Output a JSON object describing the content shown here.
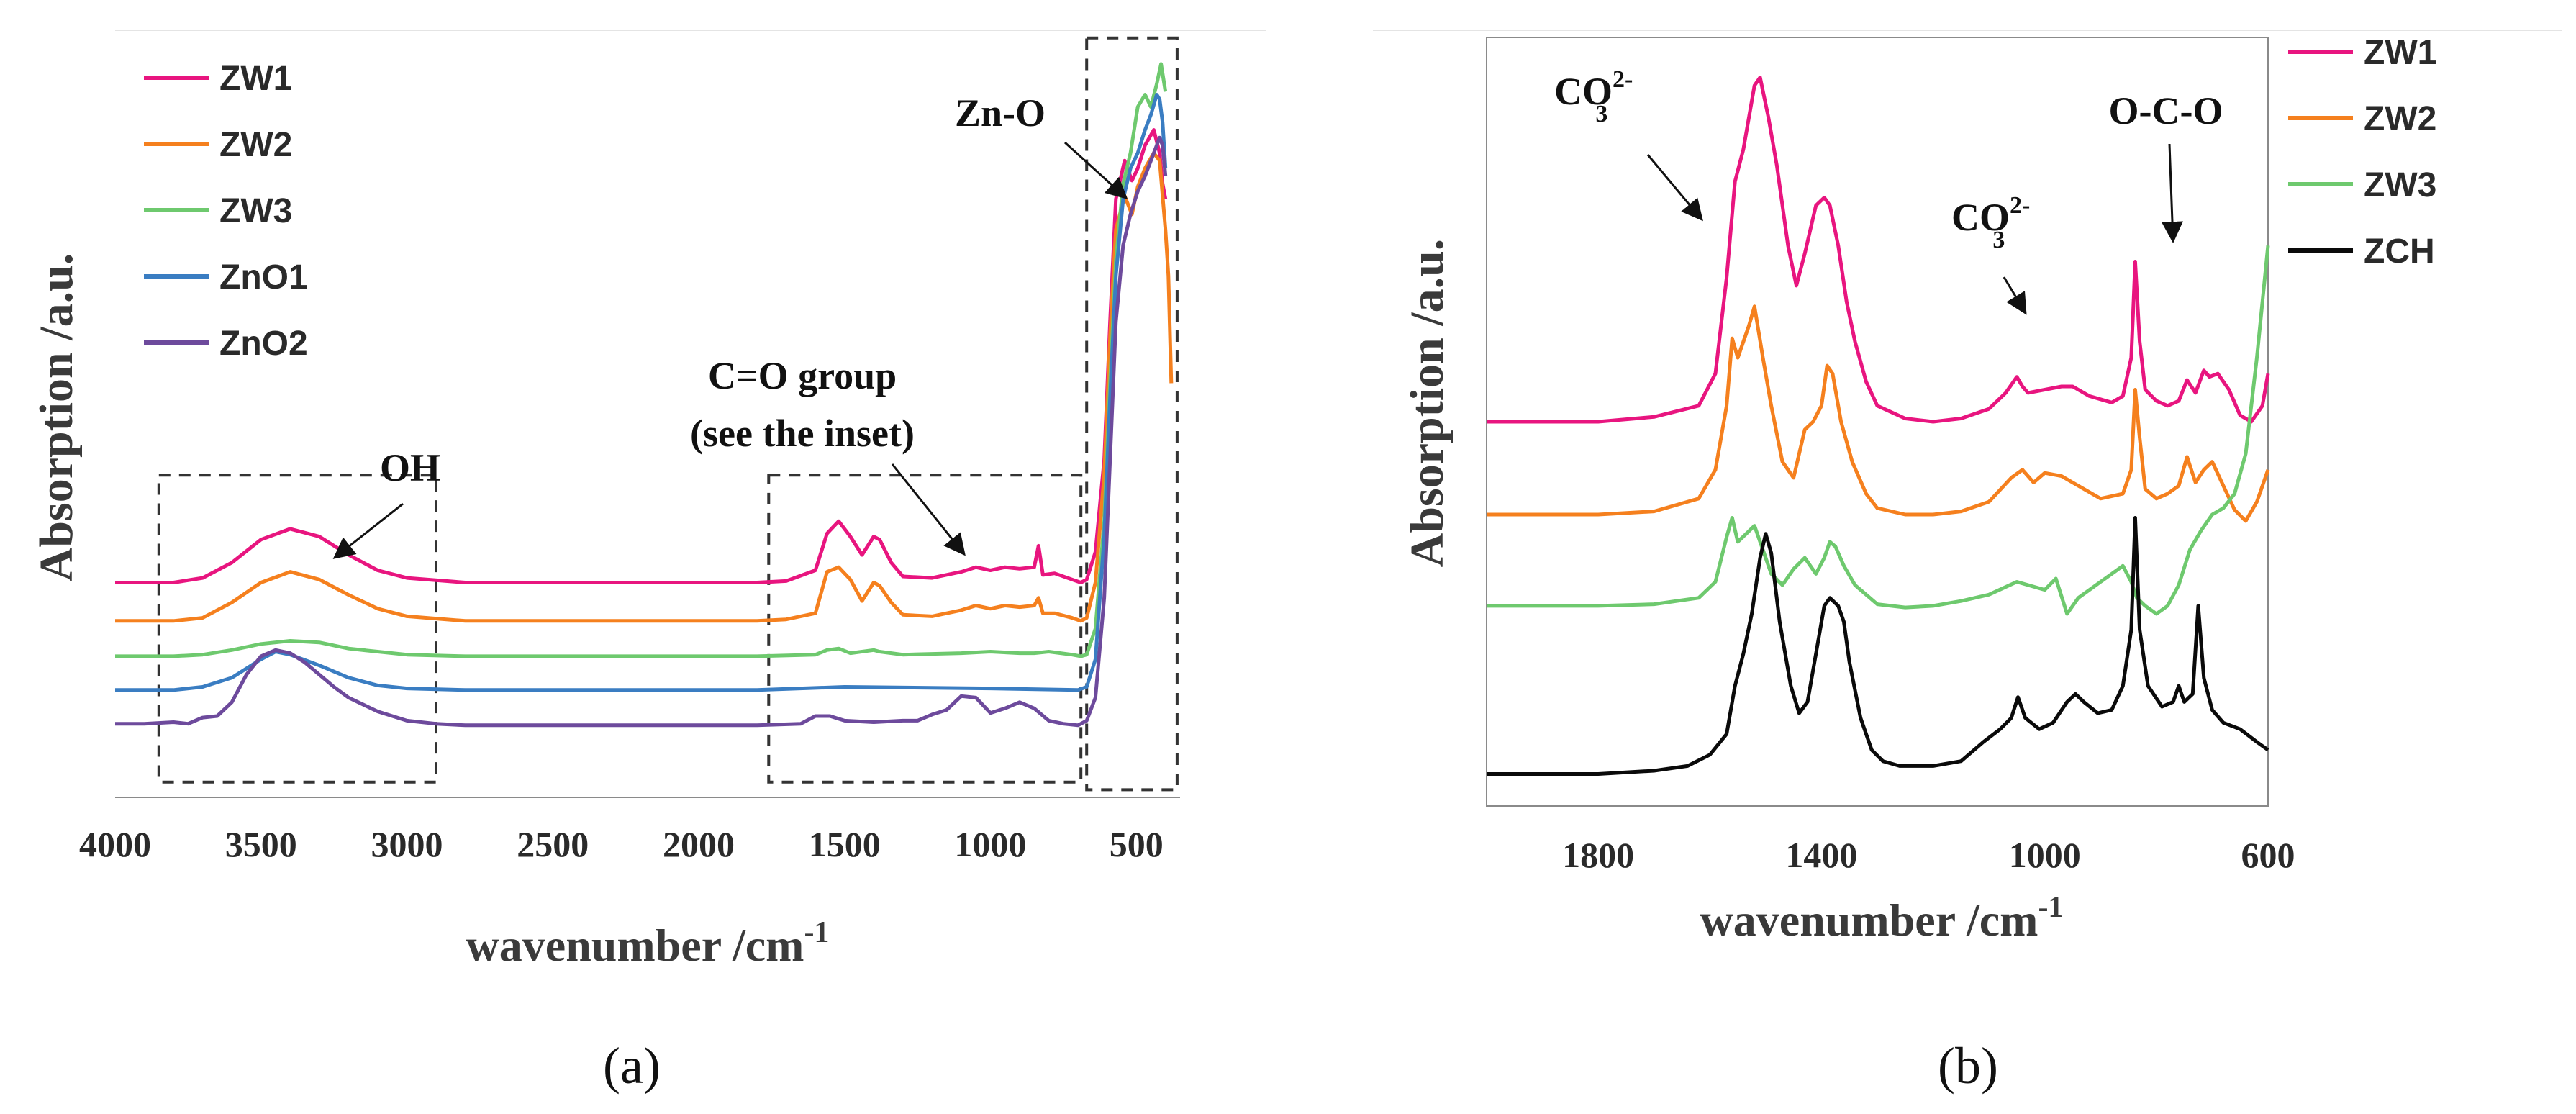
{
  "chart_data": [
    {
      "type": "line",
      "panel_label": "a",
      "caption": "(a)",
      "xlabel": "wavenumber /cm",
      "xlabel_sup": "-1",
      "ylabel": "Absorption /a.u.",
      "xlim": [
        4000,
        350
      ],
      "x_reversed": true,
      "ylim": [
        -0.2,
        4.8
      ],
      "xticks": [
        4000,
        3500,
        3000,
        2500,
        2000,
        1500,
        1000,
        500
      ],
      "legend": {
        "position": "top-left",
        "entries": [
          "ZW1",
          "ZW2",
          "ZW3",
          "ZnO1",
          "ZnO2"
        ]
      },
      "series": [
        {
          "name": "ZW1",
          "color": "#e8157f",
          "x": [
            4000,
            3800,
            3700,
            3600,
            3500,
            3400,
            3300,
            3200,
            3100,
            3000,
            2800,
            2500,
            2000,
            1800,
            1700,
            1600,
            1560,
            1520,
            1480,
            1440,
            1400,
            1380,
            1340,
            1300,
            1200,
            1100,
            1050,
            1000,
            950,
            900,
            850,
            835,
            820,
            780,
            720,
            690,
            670,
            640,
            610,
            590,
            570,
            540,
            515,
            495,
            470,
            440,
            420,
            410,
            400
          ],
          "y": [
            1.2,
            1.2,
            1.23,
            1.33,
            1.48,
            1.55,
            1.5,
            1.38,
            1.28,
            1.23,
            1.2,
            1.2,
            1.2,
            1.2,
            1.21,
            1.28,
            1.52,
            1.6,
            1.5,
            1.38,
            1.5,
            1.48,
            1.33,
            1.24,
            1.23,
            1.27,
            1.3,
            1.28,
            1.3,
            1.29,
            1.3,
            1.44,
            1.25,
            1.26,
            1.22,
            1.2,
            1.22,
            1.4,
            2.0,
            2.9,
            3.7,
            3.95,
            3.82,
            3.9,
            4.05,
            4.15,
            4.0,
            3.8,
            3.7
          ]
        },
        {
          "name": "ZW2",
          "color": "#f5801e",
          "x": [
            4000,
            3800,
            3700,
            3600,
            3500,
            3400,
            3300,
            3200,
            3100,
            3000,
            2800,
            2500,
            2000,
            1800,
            1700,
            1600,
            1560,
            1520,
            1480,
            1440,
            1400,
            1380,
            1340,
            1300,
            1200,
            1100,
            1050,
            1000,
            950,
            900,
            850,
            835,
            820,
            780,
            720,
            690,
            670,
            640,
            610,
            590,
            570,
            540,
            515,
            495,
            470,
            440,
            420,
            400,
            390,
            380
          ],
          "y": [
            0.95,
            0.95,
            0.97,
            1.07,
            1.2,
            1.27,
            1.22,
            1.12,
            1.03,
            0.98,
            0.95,
            0.95,
            0.95,
            0.95,
            0.96,
            1.0,
            1.27,
            1.3,
            1.22,
            1.08,
            1.2,
            1.18,
            1.07,
            0.99,
            0.98,
            1.02,
            1.05,
            1.03,
            1.05,
            1.04,
            1.05,
            1.1,
            1.0,
            1.0,
            0.97,
            0.95,
            0.97,
            1.2,
            1.9,
            2.8,
            3.5,
            3.72,
            3.6,
            3.78,
            3.9,
            4.0,
            3.95,
            3.5,
            3.2,
            2.5
          ]
        },
        {
          "name": "ZW3",
          "color": "#6ec96e",
          "x": [
            4000,
            3800,
            3700,
            3600,
            3500,
            3400,
            3300,
            3200,
            3100,
            3000,
            2800,
            2500,
            2000,
            1800,
            1600,
            1560,
            1520,
            1480,
            1400,
            1380,
            1300,
            1100,
            1000,
            900,
            850,
            800,
            720,
            690,
            670,
            640,
            610,
            590,
            570,
            545,
            520,
            495,
            470,
            450,
            430,
            415,
            400
          ],
          "y": [
            0.72,
            0.72,
            0.73,
            0.76,
            0.8,
            0.82,
            0.81,
            0.77,
            0.75,
            0.73,
            0.72,
            0.72,
            0.72,
            0.72,
            0.73,
            0.76,
            0.77,
            0.74,
            0.76,
            0.75,
            0.73,
            0.74,
            0.75,
            0.74,
            0.74,
            0.75,
            0.73,
            0.72,
            0.73,
            0.9,
            1.6,
            2.5,
            3.3,
            3.8,
            4.0,
            4.3,
            4.38,
            4.3,
            4.45,
            4.58,
            4.4
          ]
        },
        {
          "name": "ZnO1",
          "color": "#3a7dc2",
          "x": [
            4000,
            3800,
            3700,
            3600,
            3500,
            3450,
            3400,
            3300,
            3200,
            3100,
            3000,
            2800,
            2500,
            2000,
            1800,
            1500,
            1000,
            700,
            670,
            640,
            610,
            590,
            570,
            545,
            520,
            495,
            470,
            450,
            430,
            420,
            410,
            400
          ],
          "y": [
            0.5,
            0.5,
            0.52,
            0.58,
            0.7,
            0.75,
            0.73,
            0.66,
            0.58,
            0.53,
            0.51,
            0.5,
            0.5,
            0.5,
            0.5,
            0.52,
            0.51,
            0.5,
            0.52,
            0.7,
            1.5,
            2.4,
            3.2,
            3.7,
            3.9,
            4.0,
            4.15,
            4.25,
            4.38,
            4.35,
            4.2,
            3.9
          ]
        },
        {
          "name": "ZnO2",
          "color": "#6d4a9c",
          "x": [
            4000,
            3900,
            3800,
            3750,
            3700,
            3650,
            3600,
            3550,
            3500,
            3450,
            3400,
            3350,
            3300,
            3250,
            3200,
            3100,
            3000,
            2900,
            2800,
            2500,
            2000,
            1800,
            1650,
            1600,
            1550,
            1500,
            1400,
            1300,
            1250,
            1200,
            1150,
            1100,
            1050,
            1000,
            950,
            900,
            850,
            800,
            750,
            700,
            670,
            640,
            610,
            590,
            570,
            545,
            520,
            495,
            470,
            450,
            430,
            420,
            410,
            400
          ],
          "y": [
            0.28,
            0.28,
            0.29,
            0.28,
            0.32,
            0.33,
            0.42,
            0.6,
            0.72,
            0.76,
            0.74,
            0.68,
            0.6,
            0.52,
            0.45,
            0.36,
            0.3,
            0.28,
            0.27,
            0.27,
            0.27,
            0.27,
            0.28,
            0.33,
            0.33,
            0.3,
            0.29,
            0.3,
            0.3,
            0.34,
            0.37,
            0.46,
            0.45,
            0.35,
            0.38,
            0.42,
            0.38,
            0.3,
            0.28,
            0.27,
            0.3,
            0.45,
            1.1,
            2.0,
            2.9,
            3.4,
            3.6,
            3.75,
            3.85,
            3.95,
            4.05,
            4.1,
            4.05,
            3.85
          ]
        }
      ],
      "annotations": [
        {
          "text": "OH",
          "box": {
            "x": [
              3850,
              2900
            ],
            "y": [
              -0.1,
              1.9
            ]
          }
        },
        {
          "text": "C=O group",
          "text2": "(see the inset)",
          "box": {
            "x": [
              1760,
              690
            ],
            "y": [
              -0.1,
              1.9
            ]
          }
        },
        {
          "text": "Zn-O",
          "box": {
            "x": [
              670,
              360
            ],
            "y": [
              -0.15,
              4.75
            ]
          }
        }
      ]
    },
    {
      "type": "line",
      "panel_label": "b",
      "caption": "(b)",
      "xlabel": "wavenumber /cm",
      "xlabel_sup": "-1",
      "ylabel": "Absorption /a.u.",
      "xlim": [
        2000,
        600
      ],
      "x_reversed": true,
      "ylim": [
        -0.2,
        4.6
      ],
      "xticks": [
        1800,
        1400,
        1000,
        600
      ],
      "legend": {
        "position": "top-right, outside",
        "entries": [
          "ZW1",
          "ZW2",
          "ZW3",
          "ZCH"
        ]
      },
      "series": [
        {
          "name": "ZW1",
          "color": "#e8157f",
          "x": [
            2000,
            1800,
            1700,
            1620,
            1590,
            1570,
            1555,
            1540,
            1520,
            1510,
            1495,
            1480,
            1460,
            1445,
            1430,
            1410,
            1395,
            1385,
            1370,
            1355,
            1340,
            1320,
            1300,
            1250,
            1200,
            1150,
            1100,
            1070,
            1050,
            1040,
            1030,
            1000,
            970,
            950,
            920,
            880,
            860,
            845,
            838,
            830,
            820,
            800,
            780,
            760,
            745,
            730,
            715,
            705,
            690,
            670,
            650,
            630,
            610,
            600
          ],
          "y": [
            2.2,
            2.2,
            2.23,
            2.3,
            2.5,
            3.1,
            3.7,
            3.9,
            4.3,
            4.35,
            4.1,
            3.8,
            3.3,
            3.05,
            3.25,
            3.55,
            3.6,
            3.55,
            3.3,
            2.95,
            2.7,
            2.45,
            2.3,
            2.22,
            2.2,
            2.22,
            2.28,
            2.38,
            2.48,
            2.42,
            2.38,
            2.4,
            2.42,
            2.42,
            2.36,
            2.32,
            2.36,
            2.6,
            3.2,
            2.7,
            2.4,
            2.33,
            2.3,
            2.33,
            2.46,
            2.38,
            2.52,
            2.48,
            2.5,
            2.4,
            2.24,
            2.2,
            2.3,
            2.5
          ]
        },
        {
          "name": "ZW2",
          "color": "#f5801e",
          "x": [
            2000,
            1800,
            1700,
            1620,
            1590,
            1570,
            1560,
            1550,
            1530,
            1520,
            1505,
            1490,
            1470,
            1450,
            1430,
            1415,
            1400,
            1390,
            1380,
            1365,
            1345,
            1320,
            1300,
            1250,
            1200,
            1150,
            1100,
            1060,
            1040,
            1020,
            1000,
            970,
            940,
            900,
            860,
            845,
            838,
            830,
            820,
            800,
            780,
            760,
            745,
            730,
            715,
            700,
            680,
            660,
            640,
            620,
            600
          ],
          "y": [
            1.62,
            1.62,
            1.64,
            1.72,
            1.9,
            2.3,
            2.72,
            2.6,
            2.8,
            2.92,
            2.6,
            2.3,
            1.95,
            1.85,
            2.15,
            2.2,
            2.3,
            2.55,
            2.5,
            2.2,
            1.95,
            1.75,
            1.66,
            1.62,
            1.62,
            1.64,
            1.7,
            1.85,
            1.9,
            1.82,
            1.88,
            1.86,
            1.8,
            1.72,
            1.75,
            1.9,
            2.4,
            2.1,
            1.78,
            1.72,
            1.75,
            1.8,
            1.98,
            1.82,
            1.9,
            1.95,
            1.8,
            1.65,
            1.58,
            1.7,
            1.9
          ]
        },
        {
          "name": "ZW3",
          "color": "#6ec96e",
          "x": [
            2000,
            1800,
            1700,
            1620,
            1590,
            1570,
            1560,
            1550,
            1535,
            1520,
            1505,
            1490,
            1470,
            1450,
            1430,
            1410,
            1395,
            1385,
            1375,
            1360,
            1340,
            1320,
            1300,
            1250,
            1200,
            1150,
            1100,
            1050,
            1000,
            980,
            960,
            940,
            900,
            860,
            845,
            835,
            820,
            800,
            780,
            760,
            740,
            720,
            700,
            680,
            660,
            640,
            620,
            600
          ],
          "y": [
            1.05,
            1.05,
            1.06,
            1.1,
            1.2,
            1.48,
            1.6,
            1.45,
            1.5,
            1.55,
            1.4,
            1.25,
            1.18,
            1.28,
            1.35,
            1.25,
            1.35,
            1.45,
            1.42,
            1.3,
            1.18,
            1.12,
            1.06,
            1.04,
            1.05,
            1.08,
            1.12,
            1.2,
            1.15,
            1.22,
            1.0,
            1.1,
            1.2,
            1.3,
            1.2,
            1.1,
            1.05,
            1.0,
            1.05,
            1.18,
            1.4,
            1.52,
            1.62,
            1.66,
            1.75,
            2.0,
            2.6,
            3.3
          ]
        },
        {
          "name": "ZCH",
          "color": "#0a0a0a",
          "x": [
            2000,
            1800,
            1700,
            1640,
            1600,
            1570,
            1555,
            1540,
            1525,
            1510,
            1500,
            1490,
            1475,
            1455,
            1440,
            1425,
            1410,
            1395,
            1385,
            1370,
            1360,
            1350,
            1330,
            1310,
            1290,
            1260,
            1200,
            1150,
            1110,
            1080,
            1060,
            1048,
            1035,
            1010,
            985,
            960,
            945,
            930,
            905,
            880,
            860,
            845,
            838,
            830,
            815,
            790,
            770,
            760,
            750,
            735,
            725,
            715,
            700,
            680,
            650,
            620,
            600
          ],
          "y": [
            0.0,
            0.0,
            0.02,
            0.05,
            0.12,
            0.25,
            0.55,
            0.75,
            1.0,
            1.35,
            1.5,
            1.38,
            0.95,
            0.55,
            0.38,
            0.45,
            0.75,
            1.05,
            1.1,
            1.05,
            0.95,
            0.7,
            0.35,
            0.15,
            0.08,
            0.05,
            0.05,
            0.08,
            0.2,
            0.28,
            0.35,
            0.48,
            0.35,
            0.28,
            0.32,
            0.45,
            0.5,
            0.45,
            0.38,
            0.4,
            0.55,
            0.9,
            1.6,
            0.9,
            0.55,
            0.42,
            0.45,
            0.55,
            0.45,
            0.5,
            1.05,
            0.6,
            0.4,
            0.32,
            0.28,
            0.2,
            0.15
          ]
        }
      ],
      "annotations": [
        {
          "text": "CO",
          "sub": "3",
          "sup": "2-"
        },
        {
          "text": "CO",
          "sub": "3",
          "sup": "2-"
        },
        {
          "text": "O-C-O"
        }
      ]
    }
  ]
}
